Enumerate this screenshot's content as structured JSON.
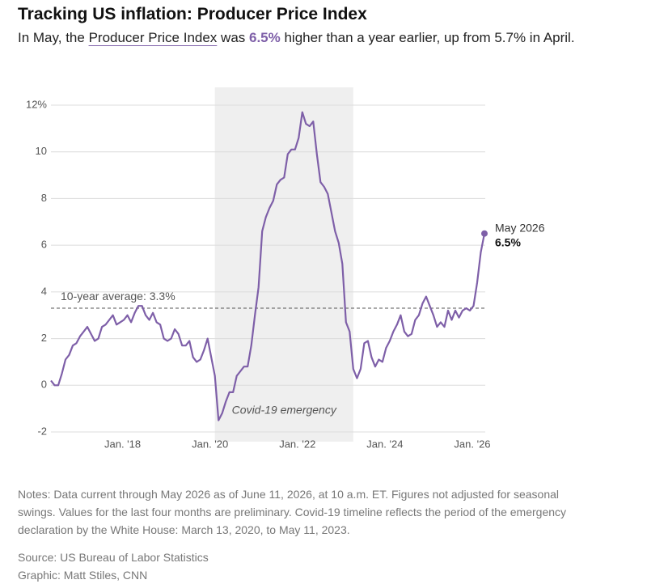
{
  "chart_data": {
    "type": "line",
    "title": "Tracking US inflation: Producer Price Index",
    "subtitle": [
      "In May, the ",
      "Producer Price Index",
      " was ",
      "6.5%",
      " higher than a year earlier, up from 5.7% in April."
    ],
    "color": "#7e5fa8",
    "x": [
      "2016-06",
      "2016-07",
      "2016-08",
      "2016-09",
      "2016-10",
      "2016-11",
      "2016-12",
      "2017-01",
      "2017-02",
      "2017-03",
      "2017-04",
      "2017-05",
      "2017-06",
      "2017-07",
      "2017-08",
      "2017-09",
      "2017-10",
      "2017-11",
      "2017-12",
      "2018-01",
      "2018-02",
      "2018-03",
      "2018-04",
      "2018-05",
      "2018-06",
      "2018-07",
      "2018-08",
      "2018-09",
      "2018-10",
      "2018-11",
      "2018-12",
      "2019-01",
      "2019-02",
      "2019-03",
      "2019-04",
      "2019-05",
      "2019-06",
      "2019-07",
      "2019-08",
      "2019-09",
      "2019-10",
      "2019-11",
      "2019-12",
      "2020-01",
      "2020-02",
      "2020-03",
      "2020-04",
      "2020-05",
      "2020-06",
      "2020-07",
      "2020-08",
      "2020-09",
      "2020-10",
      "2020-11",
      "2020-12",
      "2021-01",
      "2021-02",
      "2021-03",
      "2021-04",
      "2021-05",
      "2021-06",
      "2021-07",
      "2021-08",
      "2021-09",
      "2021-10",
      "2021-11",
      "2021-12",
      "2022-01",
      "2022-02",
      "2022-03",
      "2022-04",
      "2022-05",
      "2022-06",
      "2022-07",
      "2022-08",
      "2022-09",
      "2022-10",
      "2022-11",
      "2022-12",
      "2023-01",
      "2023-02",
      "2023-03",
      "2023-04",
      "2023-05",
      "2023-06",
      "2023-07",
      "2023-08",
      "2023-09",
      "2023-10",
      "2023-11",
      "2023-12",
      "2024-01",
      "2024-02",
      "2024-03",
      "2024-04",
      "2024-05",
      "2024-06",
      "2024-07",
      "2024-08",
      "2024-09",
      "2024-10",
      "2024-11",
      "2024-12",
      "2025-01",
      "2025-02",
      "2025-03",
      "2025-04",
      "2025-05",
      "2025-06",
      "2025-07",
      "2025-08",
      "2025-09",
      "2025-10",
      "2025-11",
      "2025-12",
      "2026-01",
      "2026-02",
      "2026-03",
      "2026-04",
      "2026-05"
    ],
    "values": [
      0.2,
      0.0,
      0.0,
      0.5,
      1.1,
      1.3,
      1.7,
      1.8,
      2.1,
      2.3,
      2.5,
      2.2,
      1.9,
      2.0,
      2.5,
      2.6,
      2.8,
      3.0,
      2.6,
      2.7,
      2.8,
      3.0,
      2.7,
      3.1,
      3.4,
      3.4,
      3.0,
      2.8,
      3.1,
      2.7,
      2.6,
      2.0,
      1.9,
      2.0,
      2.4,
      2.2,
      1.7,
      1.7,
      1.9,
      1.2,
      1.0,
      1.1,
      1.5,
      2.0,
      1.2,
      0.4,
      -1.5,
      -1.2,
      -0.7,
      -0.3,
      -0.3,
      0.4,
      0.6,
      0.8,
      0.8,
      1.7,
      3.0,
      4.2,
      6.6,
      7.2,
      7.6,
      7.9,
      8.6,
      8.8,
      8.9,
      9.9,
      10.1,
      10.1,
      10.6,
      11.7,
      11.2,
      11.1,
      11.3,
      9.9,
      8.7,
      8.5,
      8.2,
      7.4,
      6.6,
      6.1,
      5.2,
      2.7,
      2.3,
      0.7,
      0.3,
      0.7,
      1.8,
      1.9,
      1.2,
      0.8,
      1.1,
      1.0,
      1.6,
      1.9,
      2.3,
      2.6,
      3.0,
      2.3,
      2.1,
      2.2,
      2.8,
      3.0,
      3.5,
      3.8,
      3.4,
      3.0,
      2.5,
      2.7,
      2.5,
      3.2,
      2.8,
      3.2,
      2.9,
      3.2,
      3.3,
      3.2,
      3.4,
      4.4,
      5.7,
      6.5
    ],
    "xlim": [
      "2016-06",
      "2026-05"
    ],
    "xticks": [
      {
        "value": "2018-01",
        "label": "Jan. '18"
      },
      {
        "value": "2020-01",
        "label": "Jan. '20"
      },
      {
        "value": "2022-01",
        "label": "Jan. '22"
      },
      {
        "value": "2024-01",
        "label": "Jan. '24"
      },
      {
        "value": "2026-01",
        "label": "Jan. '26"
      }
    ],
    "ylim": [
      -2,
      12
    ],
    "yticks": [
      -2,
      0,
      2,
      4,
      6,
      8,
      10,
      {
        "value": 12,
        "label": "12%"
      }
    ],
    "grid": true,
    "average": {
      "value": 3.3,
      "label": "10-year average: 3.3%"
    },
    "shade": {
      "start": "2020-03",
      "end": "2023-05",
      "label": "Covid-19 emergency"
    },
    "end_label": {
      "date": "May 2026",
      "value": "6.5%"
    },
    "notes": "Notes: Data current through May 2026 as of June 11, 2026, at 10 a.m. ET. Figures not adjusted for seasonal swings. Values for the last four months are preliminary. Covid-19 timeline reflects the period of the emergency declaration by the White House: March 13, 2020, to May 11, 2023.",
    "source": "Source: US Bureau of Labor Statistics",
    "credit": "Graphic: Matt Stiles, CNN"
  }
}
